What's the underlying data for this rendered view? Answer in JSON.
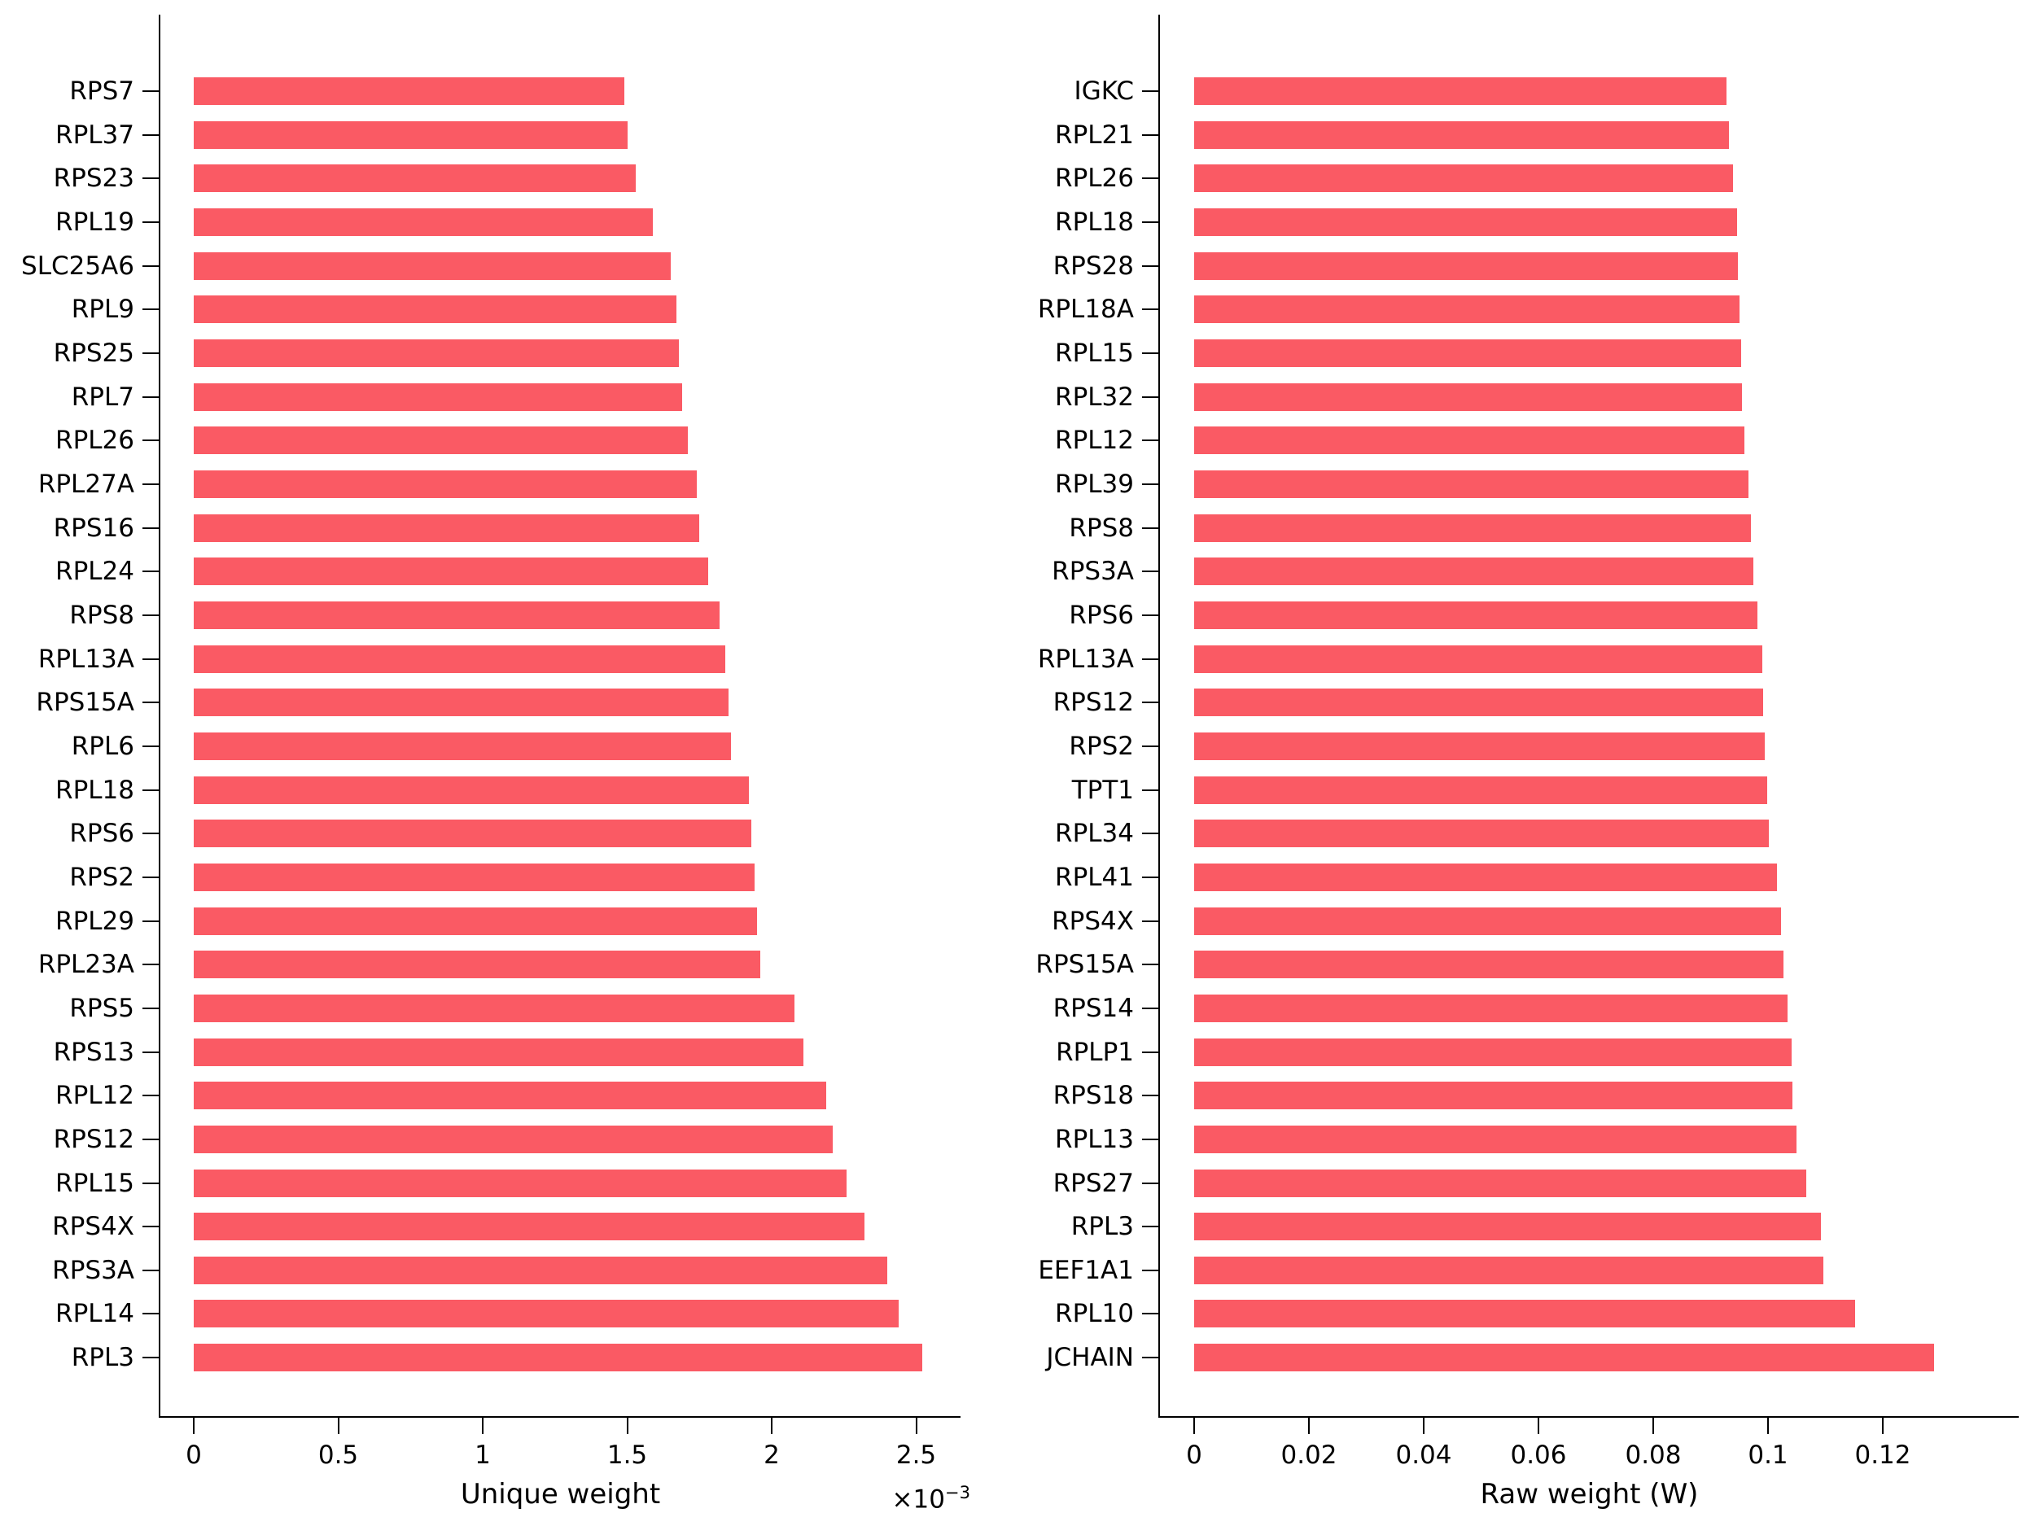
{
  "figure": {
    "background": "#FFFFFF",
    "bar_color": "#FA5A64",
    "axis_color": "#000000",
    "text_color": "#000000"
  },
  "chart_data": [
    {
      "id": "unique-weight",
      "type": "bar",
      "orientation": "horizontal",
      "title": "",
      "xlabel": "Unique weight",
      "x_offset_base": "×10",
      "x_offset_exp": "−3",
      "x_offset_label": "×10⁻³",
      "value_units": "1e-3",
      "xlim": [
        0,
        2.65
      ],
      "tick_labels": [
        "0",
        "0.5",
        "1",
        "1.5",
        "2",
        "2.5"
      ],
      "tick_values": [
        0,
        0.5,
        1,
        1.5,
        2,
        2.5
      ],
      "grid": false,
      "legend": "none",
      "categories": [
        "RPS7",
        "RPL37",
        "RPS23",
        "RPL19",
        "SLC25A6",
        "RPL9",
        "RPS25",
        "RPL7",
        "RPL26",
        "RPL27A",
        "RPS16",
        "RPL24",
        "RPS8",
        "RPL13A",
        "RPS15A",
        "RPL6",
        "RPL18",
        "RPS6",
        "RPS2",
        "RPL29",
        "RPL23A",
        "RPS5",
        "RPS13",
        "RPL12",
        "RPS12",
        "RPL15",
        "RPS4X",
        "RPS3A",
        "RPL14",
        "RPL3"
      ],
      "values": [
        1.49,
        1.5,
        1.53,
        1.59,
        1.65,
        1.67,
        1.68,
        1.69,
        1.71,
        1.74,
        1.75,
        1.78,
        1.82,
        1.84,
        1.85,
        1.86,
        1.92,
        1.93,
        1.94,
        1.95,
        1.96,
        2.08,
        2.11,
        2.19,
        2.21,
        2.26,
        2.32,
        2.4,
        2.44,
        2.52
      ]
    },
    {
      "id": "raw-weight",
      "type": "bar",
      "orientation": "horizontal",
      "title": "",
      "xlabel": "Raw weight (W)",
      "x_offset_base": "",
      "x_offset_exp": "",
      "x_offset_label": "",
      "value_units": "1",
      "xlim": [
        0,
        0.1437
      ],
      "tick_labels": [
        "0",
        "0.02",
        "0.04",
        "0.06",
        "0.08",
        "0.1",
        "0.12"
      ],
      "tick_values": [
        0,
        0.02,
        0.04,
        0.06,
        0.08,
        0.1,
        0.12
      ],
      "grid": false,
      "legend": "none",
      "categories": [
        "IGKC",
        "RPL21",
        "RPL26",
        "RPL18",
        "RPS28",
        "RPL18A",
        "RPL15",
        "RPL32",
        "RPL12",
        "RPL39",
        "RPS8",
        "RPS3A",
        "RPS6",
        "RPL13A",
        "RPS12",
        "RPS2",
        "TPT1",
        "RPL34",
        "RPL41",
        "RPS4X",
        "RPS15A",
        "RPS14",
        "RPLP1",
        "RPS18",
        "RPL13",
        "RPS27",
        "RPL3",
        "EEF1A1",
        "RPL10",
        "JCHAIN"
      ],
      "values": [
        0.0928,
        0.0932,
        0.0939,
        0.0946,
        0.0948,
        0.0951,
        0.0953,
        0.0955,
        0.0959,
        0.0966,
        0.097,
        0.0974,
        0.0982,
        0.099,
        0.0992,
        0.0995,
        0.0998,
        0.1002,
        0.1016,
        0.1023,
        0.1027,
        0.1034,
        0.1041,
        0.1043,
        0.105,
        0.1066,
        0.1092,
        0.1097,
        0.1152,
        0.129
      ]
    }
  ]
}
